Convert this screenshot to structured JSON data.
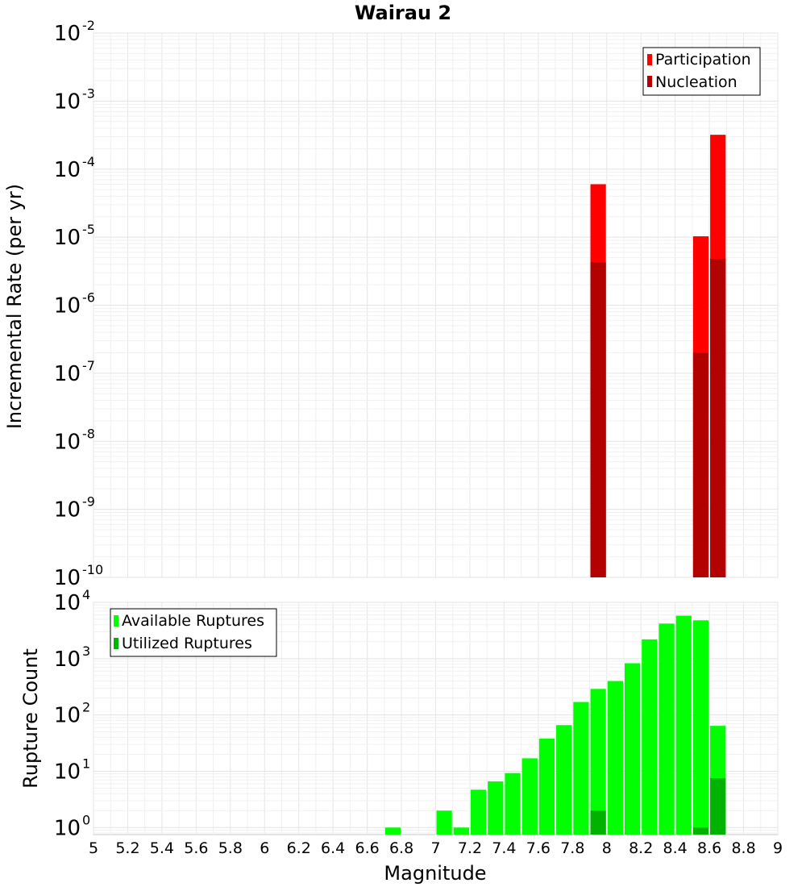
{
  "figure_title": "Wairau 2",
  "x_axis": {
    "label": "Magnitude",
    "range": [
      5,
      9
    ],
    "ticks": [
      "5",
      "5.2",
      "5.4",
      "5.6",
      "5.8",
      "6",
      "6.2",
      "6.4",
      "6.6",
      "6.8",
      "7",
      "7.2",
      "7.4",
      "7.6",
      "7.8",
      "8",
      "8.2",
      "8.4",
      "8.6",
      "8.8",
      "9"
    ]
  },
  "chart_data": [
    {
      "type": "bar",
      "scale_y": "log",
      "title": "Wairau 2",
      "xlabel": "",
      "ylabel": "Incremental Rate (per yr)",
      "xlim": [
        5,
        9
      ],
      "ylim": [
        1e-10,
        0.01
      ],
      "y_ticks": [
        {
          "base": "10",
          "exp": "-2",
          "value": 0.01
        },
        {
          "base": "10",
          "exp": "-3",
          "value": 0.001
        },
        {
          "base": "10",
          "exp": "-4",
          "value": 0.0001
        },
        {
          "base": "10",
          "exp": "-5",
          "value": 1e-05
        },
        {
          "base": "10",
          "exp": "-6",
          "value": 1e-06
        },
        {
          "base": "10",
          "exp": "-7",
          "value": 1e-07
        },
        {
          "base": "10",
          "exp": "-8",
          "value": 1e-08
        },
        {
          "base": "10",
          "exp": "-9",
          "value": 1e-09
        },
        {
          "base": "10",
          "exp": "-10",
          "value": 1e-10
        }
      ],
      "grid": true,
      "legend_position": "top-right",
      "bar_width": 0.1,
      "series": [
        {
          "name": "Participation",
          "color": "#ff0000",
          "x": [
            7.95,
            8.55,
            8.65
          ],
          "values": [
            6e-05,
            1.03e-05,
            0.00032
          ]
        },
        {
          "name": "Nucleation",
          "color": "#b30000",
          "x": [
            7.95,
            8.55,
            8.65
          ],
          "values": [
            4.3e-06,
            2e-07,
            4.8e-06
          ]
        }
      ]
    },
    {
      "type": "bar",
      "scale_y": "log",
      "xlabel": "Magnitude",
      "ylabel": "Rupture Count",
      "xlim": [
        5,
        9
      ],
      "ylim": [
        0.75,
        10000
      ],
      "y_ticks": [
        {
          "base": "10",
          "exp": "4",
          "value": 10000
        },
        {
          "base": "10",
          "exp": "3",
          "value": 1000
        },
        {
          "base": "10",
          "exp": "2",
          "value": 100
        },
        {
          "base": "10",
          "exp": "1",
          "value": 10
        },
        {
          "base": "10",
          "exp": "0",
          "value": 1
        }
      ],
      "grid": true,
      "legend_position": "top-left",
      "bar_width": 0.1,
      "series": [
        {
          "name": "Available Ruptures",
          "color": "#00ff00",
          "x": [
            6.75,
            7.05,
            7.15,
            7.25,
            7.35,
            7.45,
            7.55,
            7.65,
            7.75,
            7.85,
            7.95,
            8.05,
            8.15,
            8.25,
            8.35,
            8.45,
            8.55,
            8.65
          ],
          "values": [
            1,
            2,
            1,
            4.7,
            6.6,
            9.3,
            17,
            38,
            66,
            170,
            290,
            400,
            830,
            2200,
            4200,
            5800,
            4800,
            64
          ]
        },
        {
          "name": "Utilized Ruptures",
          "color": "#00b300",
          "x": [
            7.95,
            8.55,
            8.65
          ],
          "values": [
            2,
            1,
            7.5
          ]
        }
      ]
    }
  ]
}
